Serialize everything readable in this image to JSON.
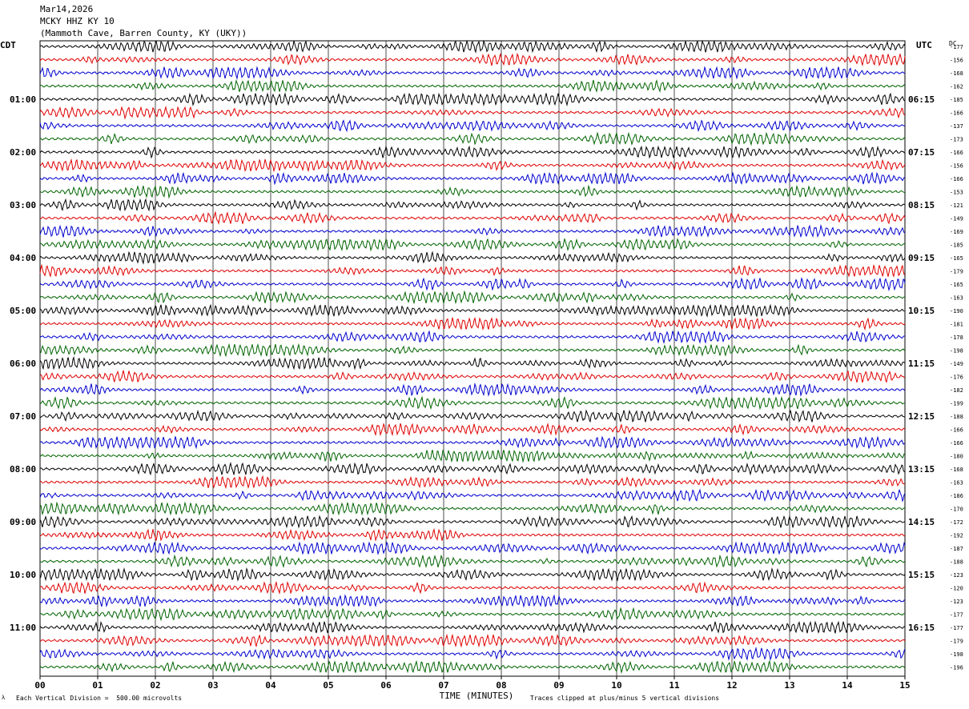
{
  "header": {
    "date": "Mar14,2026",
    "station": "MCKY HHZ KY 10",
    "location": "(Mammoth Cave, Barren County, KY (UKY))"
  },
  "left_zone_label": "CDT",
  "right_zone_label": "UTC",
  "dc_label": "DC",
  "footer": {
    "scale_note": "Each Vertical Division =  500.00 microvolts",
    "x_axis_title": "TIME (MINUTES)",
    "clip_note": "Traces clipped at plus/minus 5 vertical divisions",
    "corner_mark": "λ"
  },
  "colors": {
    "traces": [
      "#000000",
      "#e00000",
      "#0000d0",
      "#006400"
    ],
    "grid": "#000000",
    "background": "#ffffff"
  },
  "chart_data": {
    "type": "line",
    "title": "",
    "xlabel": "TIME (MINUTES)",
    "xlim": [
      0,
      15
    ],
    "x_ticks": [
      "00",
      "01",
      "02",
      "03",
      "04",
      "05",
      "06",
      "07",
      "08",
      "09",
      "10",
      "11",
      "12",
      "13",
      "14",
      "15"
    ],
    "trace_count": 48,
    "traces_per_hour": 4,
    "left_hour_labels": [
      "01:00",
      "02:00",
      "03:00",
      "04:00",
      "05:00",
      "06:00",
      "07:00",
      "08:00",
      "09:00",
      "10:00",
      "11:00"
    ],
    "right_hour_labels": [
      "06:15",
      "07:15",
      "08:15",
      "09:15",
      "10:15",
      "11:15",
      "12:15",
      "13:15",
      "14:15",
      "15:15",
      "16:15"
    ],
    "dc_offsets": [
      "-177",
      "-156",
      "-168",
      "-162",
      "-185",
      "-166",
      "-137",
      "-173",
      "-166",
      "-156",
      "-166",
      "-153",
      "-121",
      "-149",
      "-169",
      "-185",
      "-165",
      "-179",
      "-165",
      "-163",
      "-190",
      "-181",
      "-178",
      "-198",
      "-149",
      "-176",
      "-182",
      "-199",
      "-188",
      "-166",
      "-166",
      "-180",
      "-168",
      "-163",
      "-186",
      "-170",
      "-172",
      "-192",
      "-187",
      "-188",
      "-123",
      "-120",
      "-123",
      "-177",
      "-177",
      "-179",
      "-198",
      "-196"
    ]
  }
}
